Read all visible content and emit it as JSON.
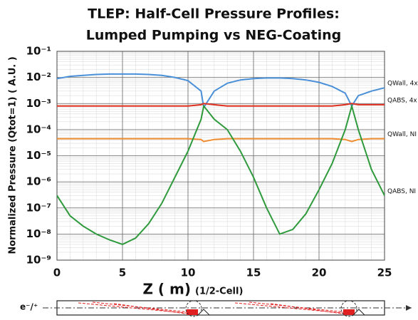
{
  "chart_data": {
    "type": "line",
    "title": [
      "TLEP: Half-Cell Pressure Profiles:",
      "Lumped Pumping vs NEG-Coating"
    ],
    "x_label": "Z ( m)",
    "x_label_note": "(1/2-Cell)",
    "y_label": "Normalized Pressure (Qtot=1) ( A.U. )",
    "x": [
      0,
      1,
      2,
      3,
      4,
      5,
      6,
      7,
      8,
      9,
      10,
      11,
      11.2,
      12,
      13,
      14,
      15,
      16,
      17,
      18,
      19,
      20,
      21,
      22,
      22.5,
      23,
      24,
      25
    ],
    "series": [
      {
        "name": "QWall, 4x",
        "color": "#4a90d9",
        "values": [
          0.009,
          0.011,
          0.012,
          0.013,
          0.0135,
          0.0135,
          0.0135,
          0.013,
          0.012,
          0.01,
          0.0075,
          0.003,
          0.0007,
          0.003,
          0.006,
          0.008,
          0.009,
          0.0095,
          0.0095,
          0.009,
          0.008,
          0.0065,
          0.0045,
          0.0025,
          0.0008,
          0.002,
          0.003,
          0.004
        ]
      },
      {
        "name": "QABS, 4x",
        "color": "#e03020",
        "values": [
          0.0008,
          0.0008,
          0.0008,
          0.0008,
          0.0008,
          0.0008,
          0.0008,
          0.0008,
          0.0008,
          0.0008,
          0.0008,
          0.0009,
          0.001,
          0.0009,
          0.0008,
          0.0008,
          0.0008,
          0.0008,
          0.0008,
          0.0008,
          0.0008,
          0.0008,
          0.0008,
          0.0009,
          0.001,
          0.0009,
          0.0009,
          0.0009
        ]
      },
      {
        "name": "QWall, NI",
        "color": "#f08c30",
        "values": [
          4.5e-05,
          4.5e-05,
          4.5e-05,
          4.5e-05,
          4.5e-05,
          4.5e-05,
          4.5e-05,
          4.5e-05,
          4.5e-05,
          4.5e-05,
          4.5e-05,
          4.2e-05,
          3.5e-05,
          4.2e-05,
          4.5e-05,
          4.5e-05,
          4.5e-05,
          4.5e-05,
          4.5e-05,
          4.5e-05,
          4.5e-05,
          4.5e-05,
          4.5e-05,
          4.2e-05,
          3.5e-05,
          4.2e-05,
          4.5e-05,
          4.5e-05
        ]
      },
      {
        "name": "QABS, NI",
        "color": "#2e9a3c",
        "values": [
          3e-07,
          5e-08,
          2e-08,
          1e-08,
          6e-09,
          4e-09,
          7e-09,
          2.5e-08,
          1.5e-07,
          1.5e-06,
          1.5e-05,
          0.00025,
          0.0008,
          0.00025,
          0.0001,
          1.5e-05,
          1.5e-06,
          1e-07,
          1e-08,
          1.5e-08,
          6e-08,
          5e-07,
          5e-06,
          0.0001,
          0.0008,
          0.0001,
          3e-06,
          3e-07
        ]
      }
    ],
    "xlim": [
      0,
      25
    ],
    "xticks": [
      0,
      5,
      10,
      15,
      20,
      25
    ],
    "ylim": [
      1e-09,
      0.1
    ],
    "log_y": true,
    "grid": true,
    "minor_grid": true,
    "yticks": [
      {
        "value": 0.1,
        "label": "10⁻¹"
      },
      {
        "value": 0.01,
        "label": "10⁻²"
      },
      {
        "value": 0.001,
        "label": "10⁻³"
      },
      {
        "value": 0.0001,
        "label": "10⁻⁴"
      },
      {
        "value": 1e-05,
        "label": "10⁻⁵"
      },
      {
        "value": 1e-06,
        "label": "10⁻⁶"
      },
      {
        "value": 1e-07,
        "label": "10⁻⁷"
      },
      {
        "value": 1e-08,
        "label": "10⁻⁸"
      },
      {
        "value": 1e-09,
        "label": "10⁻⁹"
      }
    ],
    "schematic_label": "e⁻/⁺"
  }
}
